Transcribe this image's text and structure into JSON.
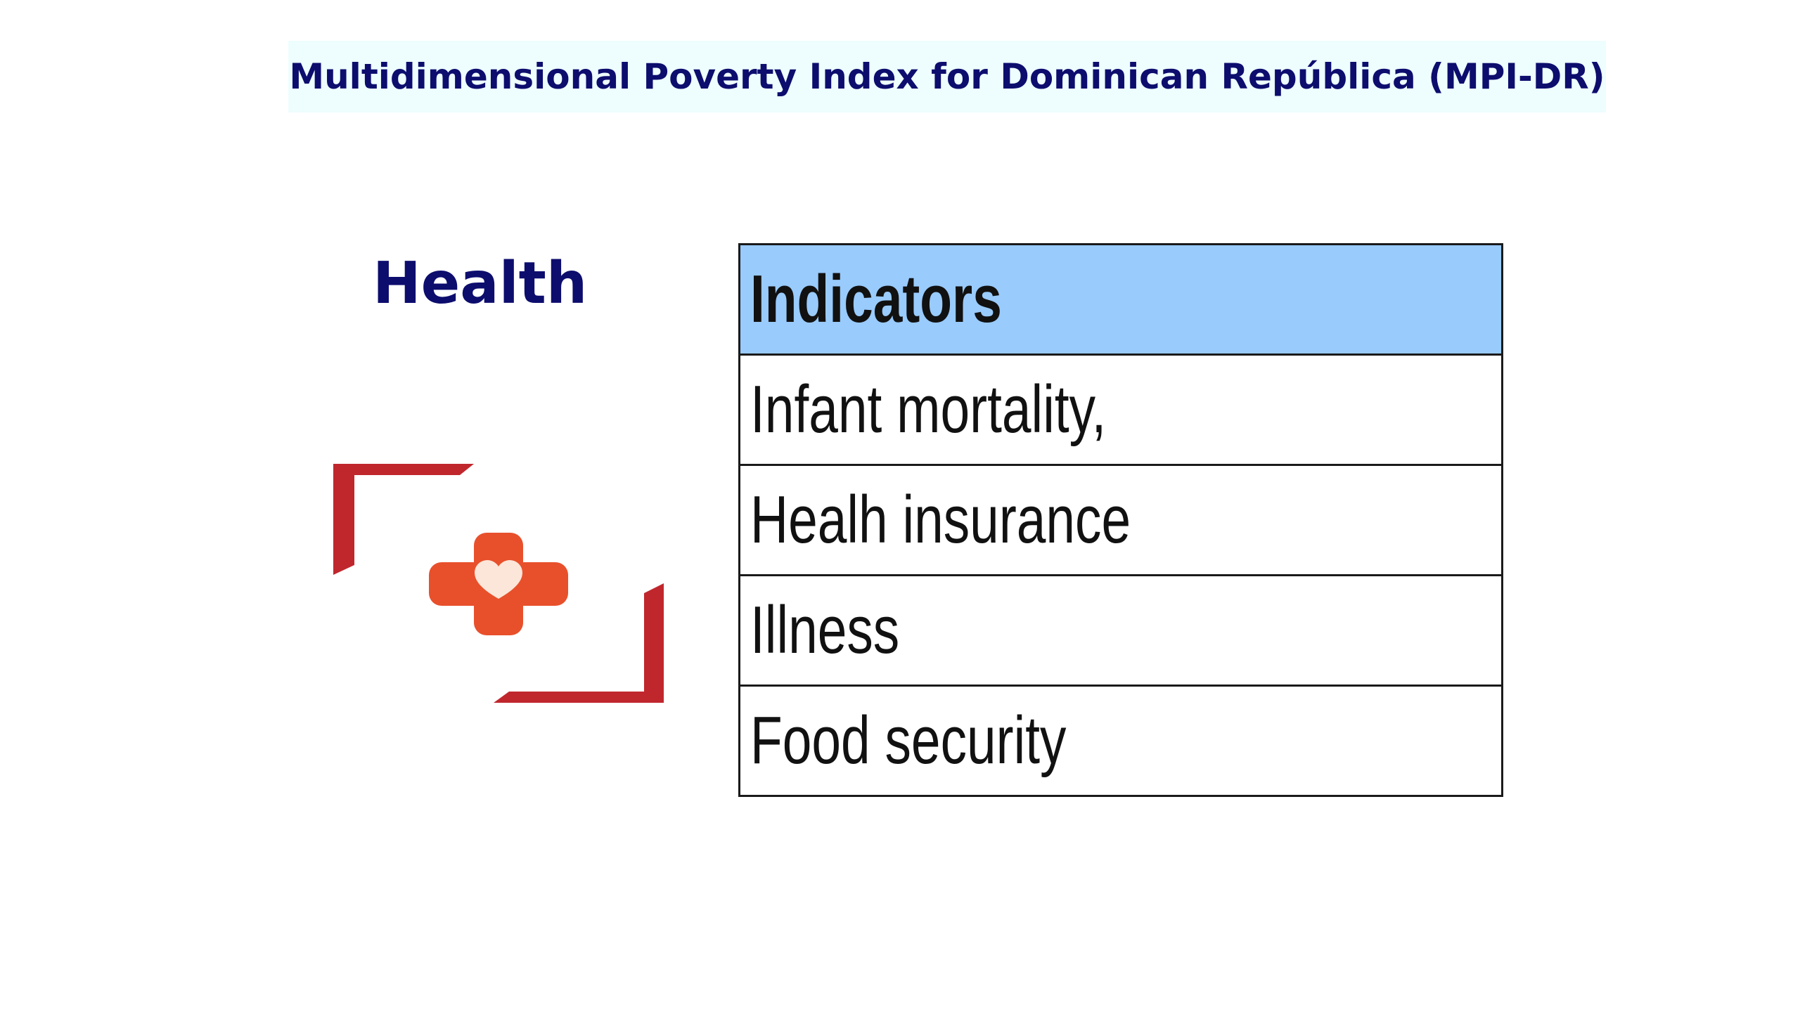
{
  "title": "Multidimensional Poverty Index for Dominican República (MPI-DR)",
  "dimension": {
    "label": "Health",
    "icon": "health-cross-heart-icon"
  },
  "colors": {
    "title_text": "#0d0d6e",
    "title_banner_bg": "#eefdfe",
    "table_header_bg": "#99cbfd",
    "logo_frame": "#c0272d",
    "logo_cross": "#e8502b",
    "logo_heart": "#fbe6d9"
  },
  "table": {
    "header": "Indicators",
    "rows": [
      "Infant mortality,",
      "Healh insurance",
      "Illness",
      "Food security"
    ]
  }
}
